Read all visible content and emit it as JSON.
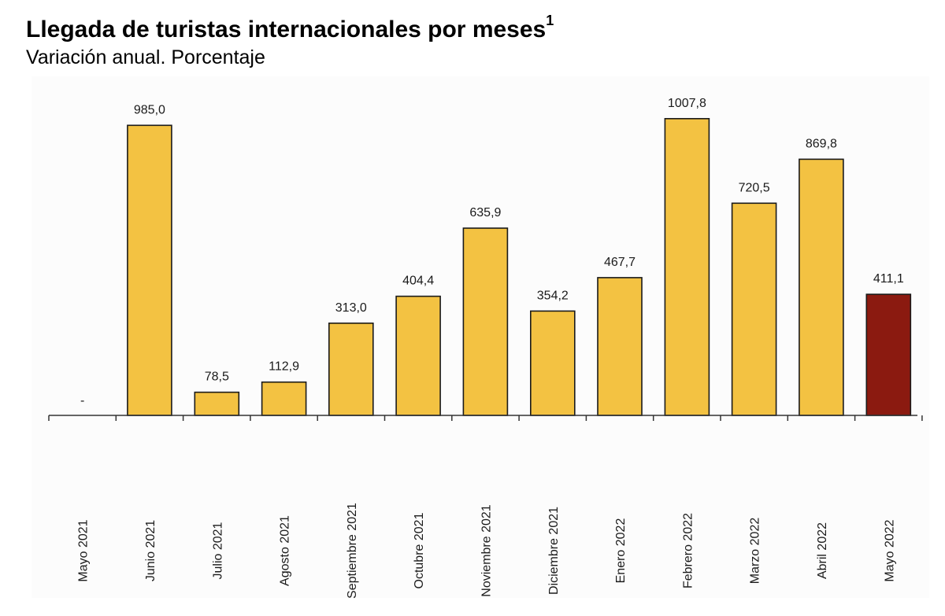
{
  "title": "Llegada de turistas internacionales por meses",
  "title_superscript": "1",
  "subtitle": "Variación anual. Porcentaje",
  "colors": {
    "bar": "#F3C242",
    "highlight": "#8B1A10",
    "stroke": "#1a1a1a",
    "plot_bg": "#FCFCFC",
    "axis": "#333333"
  },
  "chart_data": {
    "type": "bar",
    "title": "Llegada de turistas internacionales por meses",
    "subtitle": "Variación anual. Porcentaje",
    "xlabel": "",
    "ylabel": "",
    "ylim": [
      0,
      1050
    ],
    "grid": false,
    "legend": "none",
    "categories": [
      "Mayo 2021",
      "Junio 2021",
      "Julio 2021",
      "Agosto 2021",
      "Septiembre 2021",
      "Octubre 2021",
      "Noviembre 2021",
      "Diciembre 2021",
      "Enero 2022",
      "Febrero 2022",
      "Marzo 2022",
      "Abril 2022",
      "Mayo 2022"
    ],
    "values": [
      null,
      985.0,
      78.5,
      112.9,
      313.0,
      404.4,
      635.9,
      354.2,
      467.7,
      1007.8,
      720.5,
      869.8,
      411.1
    ],
    "data_labels": [
      "-",
      "985,0",
      "78,5",
      "112,9",
      "313,0",
      "404,4",
      "635,9",
      "354,2",
      "467,7",
      "1007,8",
      "720,5",
      "869,8",
      "411,1"
    ],
    "highlight_index": 12
  }
}
